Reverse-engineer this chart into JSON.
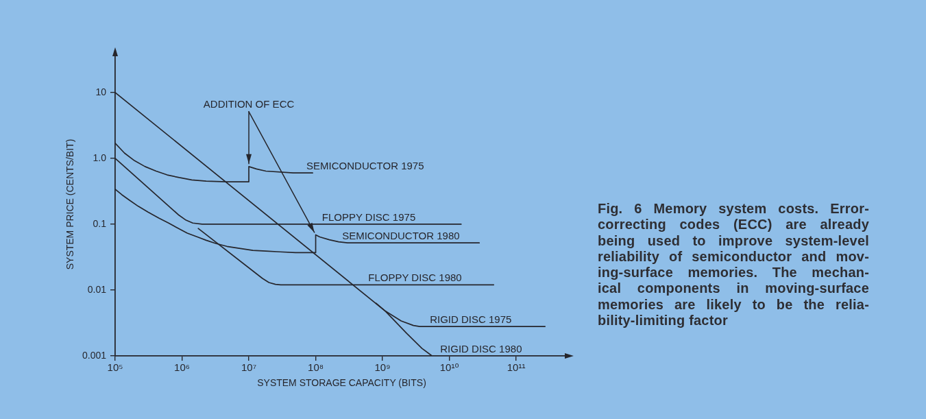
{
  "chart_data": {
    "type": "line",
    "xlabel": "SYSTEM STORAGE CAPACITY (BITS)",
    "ylabel": "SYSTEM PRICE (CENTS/BIT)",
    "log": "xy",
    "grid": false,
    "legend": false,
    "xlim": [
      100000,
      600000000000
    ],
    "ylim": [
      0.001,
      40
    ],
    "xticks": [
      {
        "value": 100000,
        "label": "10⁵"
      },
      {
        "value": 1000000,
        "label": "10⁶"
      },
      {
        "value": 10000000,
        "label": "10⁷"
      },
      {
        "value": 100000000,
        "label": "10⁸"
      },
      {
        "value": 1000000000,
        "label": "10⁹"
      },
      {
        "value": 10000000000,
        "label": "10¹⁰"
      },
      {
        "value": 100000000000,
        "label": "10¹¹"
      }
    ],
    "yticks": [
      0.001,
      0.01,
      0.1,
      {
        "value": 1,
        "label": "1.0"
      },
      10
    ],
    "annotations": [
      {
        "text": "ADDITION OF ECC",
        "x": 10000000,
        "y": 0.75
      },
      "Fig. 6 Memory system costs. Error-\ncorrecting codes (ECC) are already\nbeing used to improve system-level\nreliability of semiconductor and mov-\ning-surface memories. The mechan-\nical components in moving-surface\nmemories are likely to be the relia-\nbility-limiting factor"
    ],
    "series": [
      {
        "name": "SEMICONDUCTOR 1975",
        "color": "#26262c",
        "x": [
          100000,
          138000,
          195000,
          280000,
          410000,
          600000,
          910000,
          1400000,
          2300000,
          4700000,
          10000000,
          10000000,
          13000000,
          18000000,
          46000000,
          90000000
        ],
        "values": [
          1.7,
          1.2,
          0.92,
          0.75,
          0.64,
          0.56,
          0.51,
          0.47,
          0.45,
          0.44,
          0.44,
          0.75,
          0.69,
          0.64,
          0.6,
          0.6
        ]
      },
      {
        "name": "FLOPPY DISC 1975",
        "color": "#26262c",
        "x": [
          100000,
          900000,
          1150000,
          1450000,
          2000000,
          15000000000
        ],
        "values": [
          1.0,
          0.137,
          0.115,
          0.104,
          0.1,
          0.1
        ]
      },
      {
        "name": "SEMICONDUCTOR 1980",
        "color": "#26262c",
        "x": [
          100000,
          126000,
          160000,
          220000,
          310000,
          450000,
          630000,
          870000,
          1200000,
          1700000,
          2300000,
          3200000,
          4700000,
          7200000,
          11500000,
          18000000,
          29000000,
          50000000,
          100000000,
          100000000,
          115000000,
          160000000,
          220000000,
          300000000,
          28000000000
        ],
        "values": [
          0.34,
          0.28,
          0.235,
          0.188,
          0.153,
          0.124,
          0.104,
          0.087,
          0.073,
          0.064,
          0.057,
          0.051,
          0.046,
          0.043,
          0.04,
          0.039,
          0.038,
          0.037,
          0.037,
          0.069,
          0.064,
          0.058,
          0.054,
          0.052,
          0.052
        ]
      },
      {
        "name": "FLOPPY DISC 1980",
        "color": "#26262c",
        "x": [
          1750000,
          16000000,
          20000000,
          25000000,
          30000000,
          46000000000
        ],
        "values": [
          0.086,
          0.015,
          0.013,
          0.0122,
          0.012,
          0.012
        ]
      },
      {
        "name": "RIGID DISC 1975",
        "color": "#26262c",
        "x": [
          800000000,
          1100000000,
          1900000000,
          2900000000,
          3600000000,
          270000000000
        ],
        "values": [
          0.0063,
          0.0048,
          0.0034,
          0.0029,
          0.0028,
          0.0028
        ]
      },
      {
        "name": "RIGID DISC 1980",
        "color": "#26262c",
        "x": [
          100000,
          1100000000,
          2300000000,
          3900000000,
          5500000000
        ],
        "values": [
          10,
          0.0048,
          0.0022,
          0.0013,
          0.001
        ]
      }
    ]
  }
}
